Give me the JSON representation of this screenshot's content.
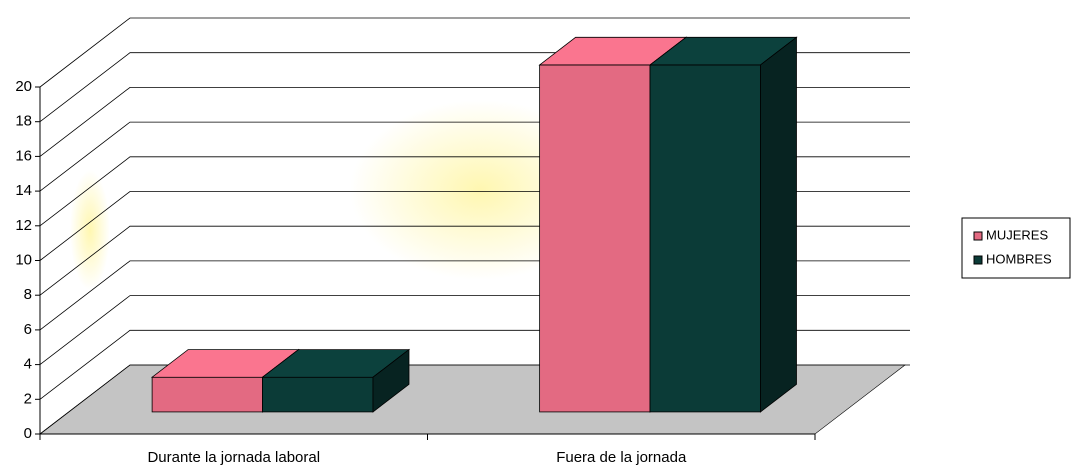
{
  "chart_data": {
    "type": "bar3d",
    "categories": [
      "Durante la jornada laboral",
      "Fuera de la jornada"
    ],
    "series": [
      {
        "name": "MUJERES",
        "color": "#e36a82",
        "values": [
          2,
          20
        ]
      },
      {
        "name": "HOMBRES",
        "color": "#0b3b37",
        "values": [
          2,
          20
        ]
      }
    ],
    "ylim": [
      0,
      20
    ],
    "yticks": [
      0,
      2,
      4,
      6,
      8,
      10,
      12,
      14,
      16,
      18,
      20
    ],
    "grid": true,
    "legend": "right"
  }
}
